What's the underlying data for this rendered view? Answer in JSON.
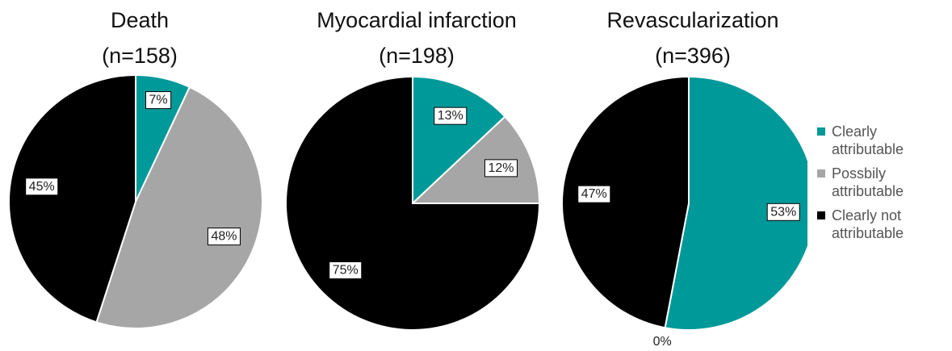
{
  "chart_data": [
    {
      "type": "pie",
      "title": "Death",
      "subtitle": "(n=158)",
      "categories": [
        "Clearly attributable",
        "Possbily attributable",
        "Clearly not attributable"
      ],
      "colors": [
        "#009999",
        "#a6a6a6",
        "#000000"
      ],
      "values": [
        7,
        48,
        45
      ],
      "value_labels": [
        "7%",
        "48%",
        "45%"
      ]
    },
    {
      "type": "pie",
      "title": "Myocardial infarction",
      "subtitle": "(n=198)",
      "categories": [
        "Clearly attributable",
        "Possbily attributable",
        "Clearly not attributable"
      ],
      "colors": [
        "#009999",
        "#a6a6a6",
        "#000000"
      ],
      "values": [
        13,
        12,
        75
      ],
      "value_labels": [
        "13%",
        "12%",
        "75%"
      ]
    },
    {
      "type": "pie",
      "title": "Revascularization",
      "subtitle": "(n=396)",
      "categories": [
        "Clearly attributable",
        "Possbily attributable",
        "Clearly not attributable"
      ],
      "colors": [
        "#009999",
        "#a6a6a6",
        "#000000"
      ],
      "values": [
        53,
        0,
        47
      ],
      "value_labels": [
        "53%",
        "0%",
        "47%"
      ]
    }
  ]
}
